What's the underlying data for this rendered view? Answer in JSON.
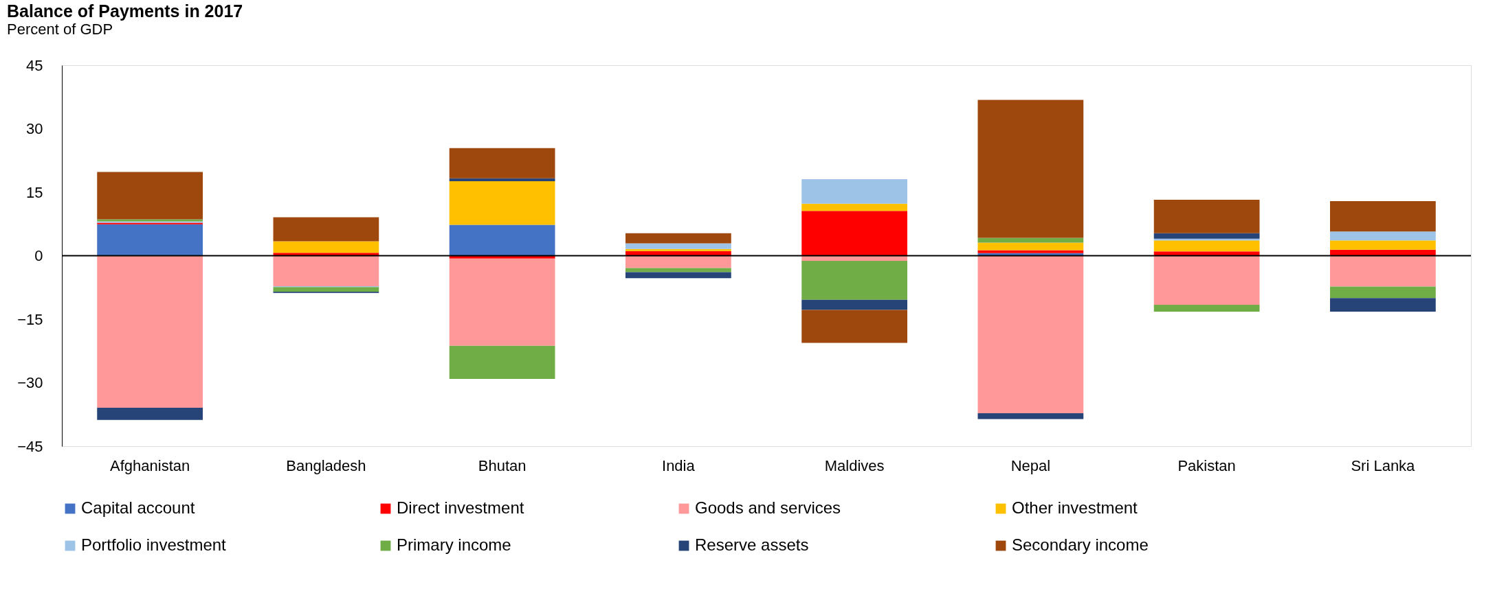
{
  "chart_data": {
    "type": "bar",
    "stacked": true,
    "title": "Balance of Payments in 2017",
    "subtitle": "Percent of GDP",
    "categories": [
      "Afghanistan",
      "Bangladesh",
      "Bhutan",
      "India",
      "Maldives",
      "Nepal",
      "Pakistan",
      "Sri Lanka"
    ],
    "series": [
      {
        "name": "Capital account",
        "color": "#4472c4",
        "values": [
          7.4,
          0,
          7.3,
          0,
          0,
          0.6,
          0,
          0
        ]
      },
      {
        "name": "Direct investment",
        "color": "#ff0000",
        "values": [
          0.4,
          0.7,
          -0.7,
          1.1,
          10.6,
          0.7,
          1.0,
          1.4
        ]
      },
      {
        "name": "Goods and services",
        "color": "#ff9999",
        "values": [
          -35.9,
          -7.2,
          -20.6,
          -2.9,
          -1.2,
          -37.2,
          -11.6,
          -7.3
        ]
      },
      {
        "name": "Other investment",
        "color": "#ffc000",
        "values": [
          0,
          2.7,
          10.3,
          0.5,
          1.7,
          1.8,
          2.6,
          2.2
        ]
      },
      {
        "name": "Portfolio investment",
        "color": "#9dc3e6",
        "values": [
          0.3,
          -0.2,
          0,
          1.3,
          5.8,
          0,
          0.4,
          2.1
        ]
      },
      {
        "name": "Primary income",
        "color": "#70ad47",
        "values": [
          0.5,
          -1.1,
          -7.8,
          -1.0,
          -9.2,
          1.1,
          -1.6,
          -2.7
        ]
      },
      {
        "name": "Reserve assets",
        "color": "#264478",
        "values": [
          -2.9,
          -0.3,
          0.7,
          -1.4,
          -2.4,
          -1.4,
          1.3,
          -3.2
        ]
      },
      {
        "name": "Secondary income",
        "color": "#9e480e",
        "values": [
          11.2,
          5.7,
          7.1,
          2.4,
          -7.8,
          32.6,
          7.9,
          7.2
        ]
      }
    ],
    "ylim": [
      -45,
      45
    ],
    "yticks": [
      -45,
      -30,
      -15,
      0,
      15,
      30,
      45
    ],
    "grid": false,
    "legend": "bottom",
    "ref_lines": [
      {
        "axis": "y",
        "value": 0,
        "color": "#000000"
      }
    ]
  }
}
